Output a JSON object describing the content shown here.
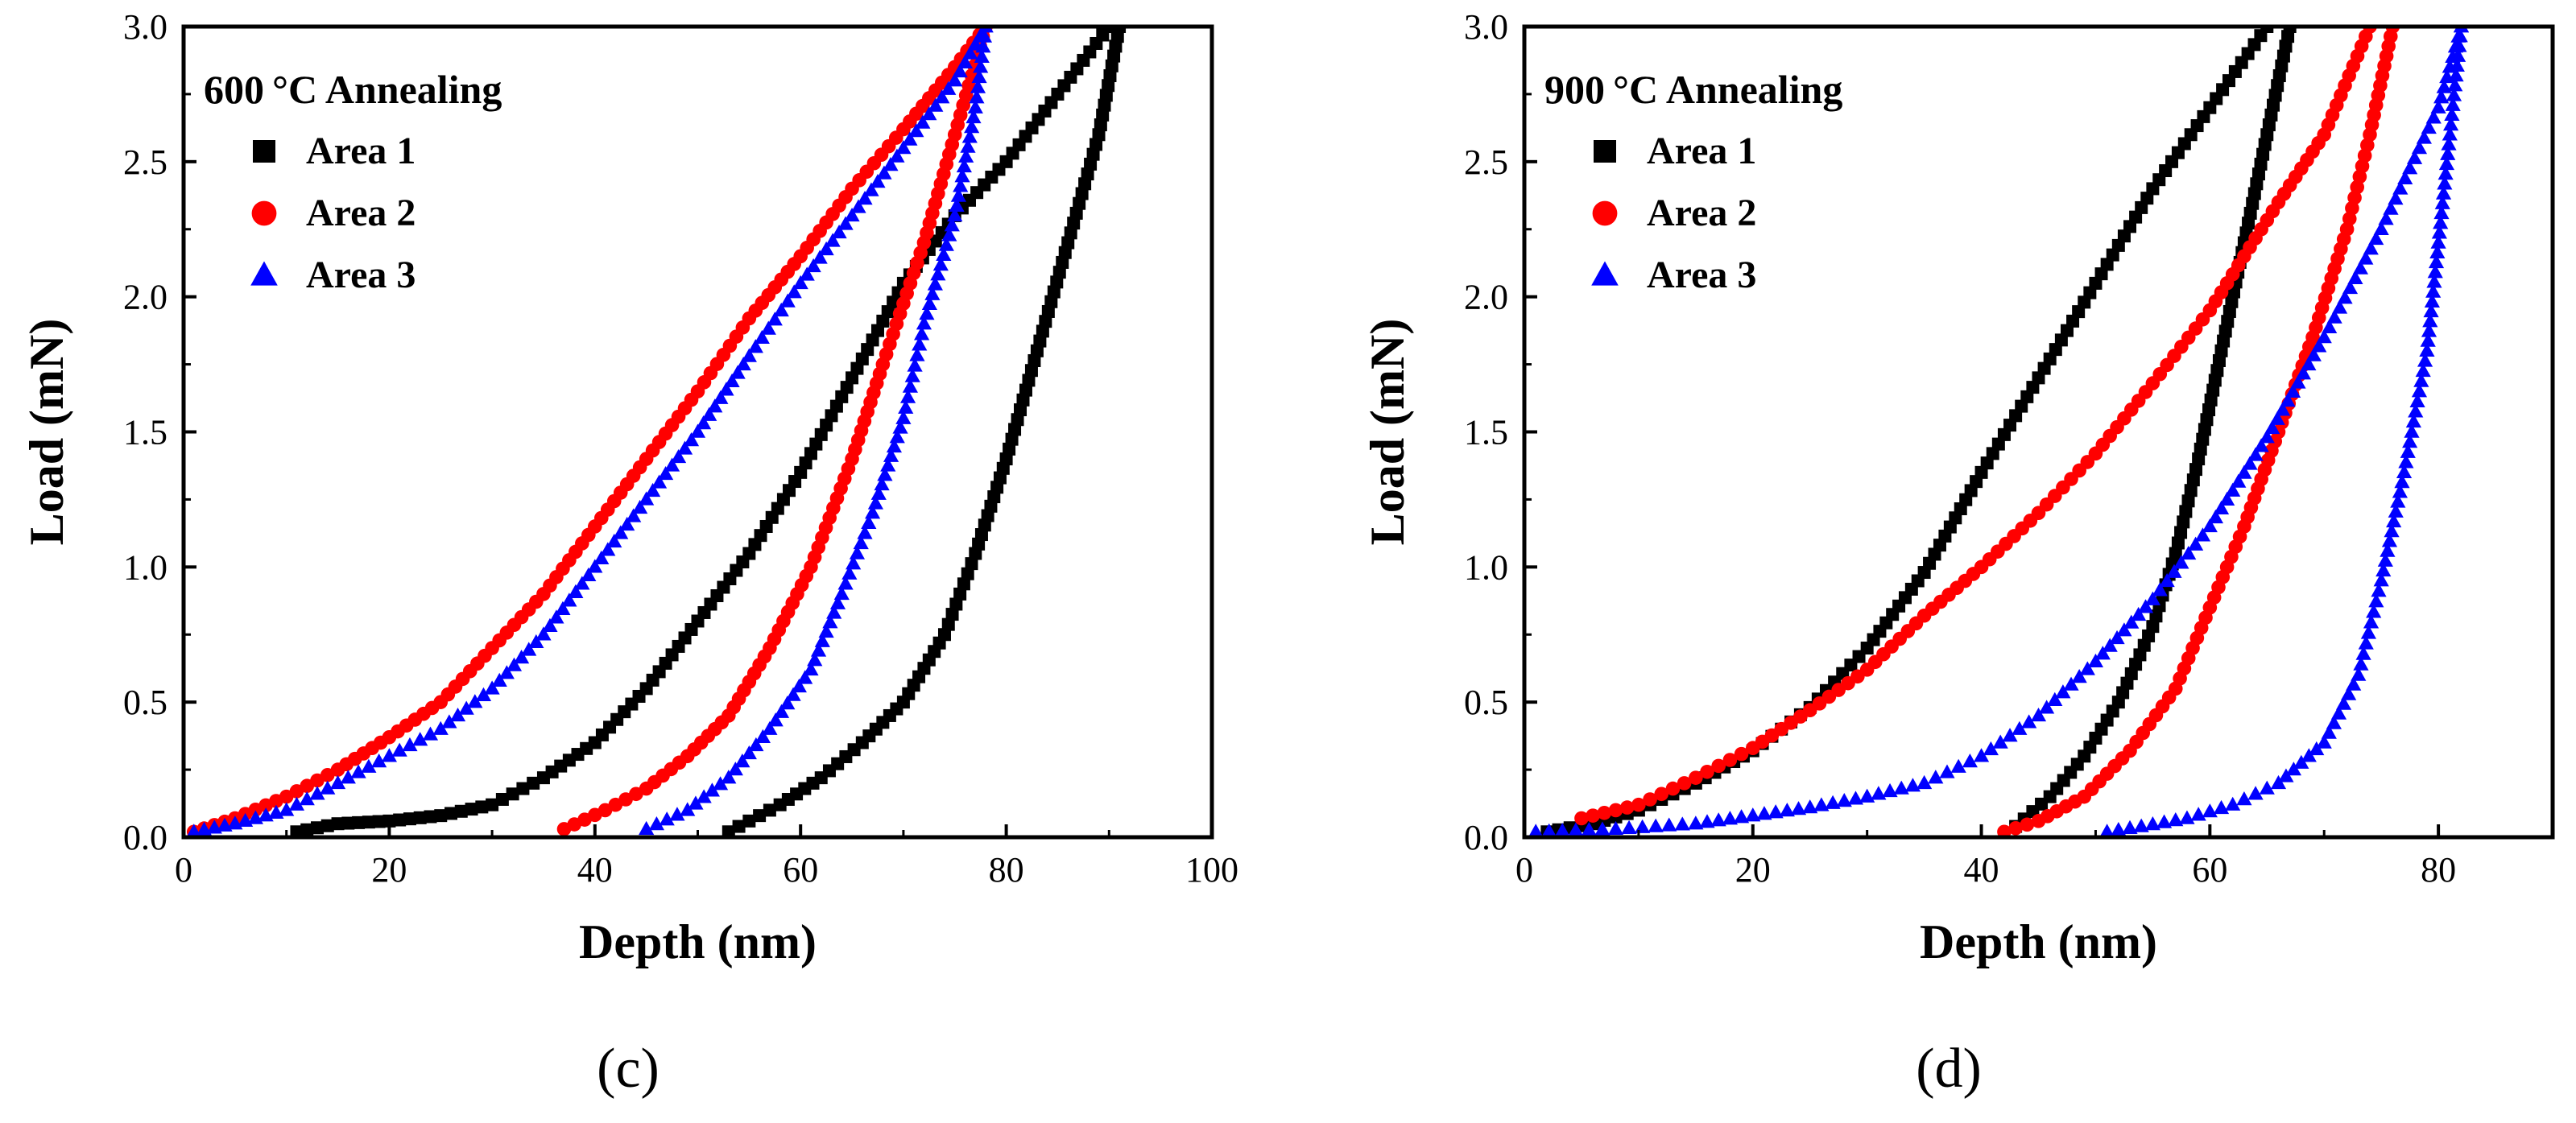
{
  "chart_data": [
    {
      "type": "scatter",
      "panel_label": "(c)",
      "title": "600",
      "title_unit": "°C Annealing",
      "xlabel": "Depth (nm)",
      "ylabel": "Load (mN)",
      "xlim": [
        0,
        100
      ],
      "ylim": [
        0,
        3.0
      ],
      "xticks": [
        "0",
        "20",
        "40",
        "60",
        "80",
        "100"
      ],
      "yticks": [
        "0.0",
        "0.5",
        "1.0",
        "1.5",
        "2.0",
        "2.5",
        "3.0"
      ],
      "legend_position": "top-left",
      "series": [
        {
          "name": "Area 1",
          "color": "#000000",
          "marker": "square",
          "loading": [
            [
              11,
              0.02
            ],
            [
              15,
              0.05
            ],
            [
              20,
              0.06
            ],
            [
              25,
              0.08
            ],
            [
              30,
              0.12
            ],
            [
              35,
              0.22
            ],
            [
              40,
              0.35
            ],
            [
              45,
              0.55
            ],
            [
              50,
              0.8
            ],
            [
              55,
              1.05
            ],
            [
              60,
              1.35
            ],
            [
              65,
              1.7
            ],
            [
              70,
              2.05
            ],
            [
              75,
              2.3
            ],
            [
              80,
              2.5
            ],
            [
              85,
              2.75
            ],
            [
              90,
              3.0
            ]
          ],
          "unloading": [
            [
              91,
              3.0
            ],
            [
              89,
              2.6
            ],
            [
              86,
              2.2
            ],
            [
              83,
              1.8
            ],
            [
              80,
              1.4
            ],
            [
              77,
              1.05
            ],
            [
              74,
              0.75
            ],
            [
              70,
              0.5
            ],
            [
              66,
              0.35
            ],
            [
              62,
              0.22
            ],
            [
              58,
              0.12
            ],
            [
              55,
              0.06
            ],
            [
              53,
              0.02
            ]
          ]
        },
        {
          "name": "Area 2",
          "color": "#ff0000",
          "marker": "circle",
          "loading": [
            [
              1,
              0.02
            ],
            [
              5,
              0.07
            ],
            [
              10,
              0.15
            ],
            [
              15,
              0.25
            ],
            [
              20,
              0.37
            ],
            [
              25,
              0.5
            ],
            [
              30,
              0.7
            ],
            [
              35,
              0.9
            ],
            [
              40,
              1.15
            ],
            [
              45,
              1.4
            ],
            [
              50,
              1.65
            ],
            [
              55,
              1.92
            ],
            [
              60,
              2.15
            ],
            [
              65,
              2.4
            ],
            [
              70,
              2.62
            ],
            [
              75,
              2.85
            ],
            [
              78,
              3.0
            ]
          ],
          "unloading": [
            [
              78,
              3.0
            ],
            [
              75,
              2.6
            ],
            [
              72,
              2.2
            ],
            [
              68,
              1.75
            ],
            [
              65,
              1.4
            ],
            [
              61,
              1.0
            ],
            [
              57,
              0.7
            ],
            [
              53,
              0.45
            ],
            [
              49,
              0.3
            ],
            [
              45,
              0.18
            ],
            [
              41,
              0.1
            ],
            [
              37,
              0.03
            ]
          ]
        },
        {
          "name": "Area 3",
          "color": "#0000ff",
          "marker": "triangle",
          "loading": [
            [
              1,
              0.02
            ],
            [
              5,
              0.05
            ],
            [
              10,
              0.1
            ],
            [
              15,
              0.2
            ],
            [
              20,
              0.3
            ],
            [
              25,
              0.4
            ],
            [
              30,
              0.55
            ],
            [
              35,
              0.75
            ],
            [
              40,
              1.0
            ],
            [
              45,
              1.25
            ],
            [
              50,
              1.5
            ],
            [
              55,
              1.78
            ],
            [
              60,
              2.05
            ],
            [
              65,
              2.3
            ],
            [
              70,
              2.55
            ],
            [
              75,
              2.8
            ],
            [
              78,
              3.0
            ]
          ],
          "unloading": [
            [
              78,
              3.0
            ],
            [
              77,
              2.7
            ],
            [
              75,
              2.3
            ],
            [
              72,
              1.9
            ],
            [
              70,
              1.55
            ],
            [
              67,
              1.2
            ],
            [
              64,
              0.9
            ],
            [
              61,
              0.62
            ],
            [
              57,
              0.4
            ],
            [
              53,
              0.22
            ],
            [
              49,
              0.1
            ],
            [
              45,
              0.03
            ]
          ]
        }
      ]
    },
    {
      "type": "scatter",
      "panel_label": "(d)",
      "title": "900",
      "title_unit": "°C Annealing",
      "xlabel": "Depth (nm)",
      "ylabel": "Load (mN)",
      "xlim": [
        0,
        90
      ],
      "ylim": [
        0,
        3.0
      ],
      "xticks": [
        "0",
        "20",
        "40",
        "60",
        "80"
      ],
      "yticks": [
        "0.0",
        "0.5",
        "1.0",
        "1.5",
        "2.0",
        "2.5",
        "3.0"
      ],
      "legend_position": "top-left",
      "series": [
        {
          "name": "Area 1",
          "color": "#000000",
          "marker": "square",
          "loading": [
            [
              2,
              0.02
            ],
            [
              6,
              0.05
            ],
            [
              10,
              0.1
            ],
            [
              15,
              0.2
            ],
            [
              20,
              0.32
            ],
            [
              25,
              0.48
            ],
            [
              30,
              0.7
            ],
            [
              35,
              0.98
            ],
            [
              40,
              1.35
            ],
            [
              45,
              1.7
            ],
            [
              50,
              2.05
            ],
            [
              55,
              2.4
            ],
            [
              60,
              2.7
            ],
            [
              65,
              3.0
            ]
          ],
          "unloading": [
            [
              67,
              3.0
            ],
            [
              65,
              2.6
            ],
            [
              63,
              2.2
            ],
            [
              61,
              1.8
            ],
            [
              59,
              1.4
            ],
            [
              57,
              1.05
            ],
            [
              55,
              0.78
            ],
            [
              52,
              0.5
            ],
            [
              49,
              0.3
            ],
            [
              46,
              0.15
            ],
            [
              43,
              0.04
            ]
          ]
        },
        {
          "name": "Area 2",
          "color": "#ff0000",
          "marker": "circle",
          "loading": [
            [
              5,
              0.07
            ],
            [
              10,
              0.12
            ],
            [
              15,
              0.22
            ],
            [
              20,
              0.33
            ],
            [
              25,
              0.47
            ],
            [
              30,
              0.62
            ],
            [
              35,
              0.82
            ],
            [
              40,
              1.0
            ],
            [
              45,
              1.2
            ],
            [
              50,
              1.42
            ],
            [
              55,
              1.68
            ],
            [
              60,
              1.95
            ],
            [
              63,
              2.15
            ],
            [
              66,
              2.35
            ],
            [
              70,
              2.6
            ],
            [
              74,
              3.0
            ]
          ],
          "unloading": [
            [
              76,
              3.0
            ],
            [
              74,
              2.6
            ],
            [
              72,
              2.25
            ],
            [
              69,
              1.85
            ],
            [
              66,
              1.5
            ],
            [
              63,
              1.15
            ],
            [
              60,
              0.85
            ],
            [
              57,
              0.55
            ],
            [
              53,
              0.32
            ],
            [
              49,
              0.15
            ],
            [
              45,
              0.06
            ],
            [
              42,
              0.02
            ]
          ]
        },
        {
          "name": "Area 3",
          "color": "#0000ff",
          "marker": "triangle",
          "loading": [
            [
              1,
              0.02
            ],
            [
              8,
              0.03
            ],
            [
              15,
              0.05
            ],
            [
              20,
              0.08
            ],
            [
              25,
              0.11
            ],
            [
              30,
              0.15
            ],
            [
              35,
              0.2
            ],
            [
              40,
              0.3
            ],
            [
              45,
              0.45
            ],
            [
              50,
              0.65
            ],
            [
              55,
              0.88
            ],
            [
              60,
              1.15
            ],
            [
              65,
              1.48
            ],
            [
              70,
              1.85
            ],
            [
              75,
              2.25
            ],
            [
              80,
              2.7
            ],
            [
              82,
              3.0
            ]
          ],
          "unloading": [
            [
              82,
              3.0
            ],
            [
              81,
              2.6
            ],
            [
              80,
              2.2
            ],
            [
              79,
              1.8
            ],
            [
              77,
              1.35
            ],
            [
              75,
              0.95
            ],
            [
              73,
              0.6
            ],
            [
              70,
              0.35
            ],
            [
              66,
              0.2
            ],
            [
              62,
              0.12
            ],
            [
              58,
              0.07
            ],
            [
              54,
              0.04
            ],
            [
              51,
              0.02
            ]
          ]
        }
      ]
    }
  ]
}
